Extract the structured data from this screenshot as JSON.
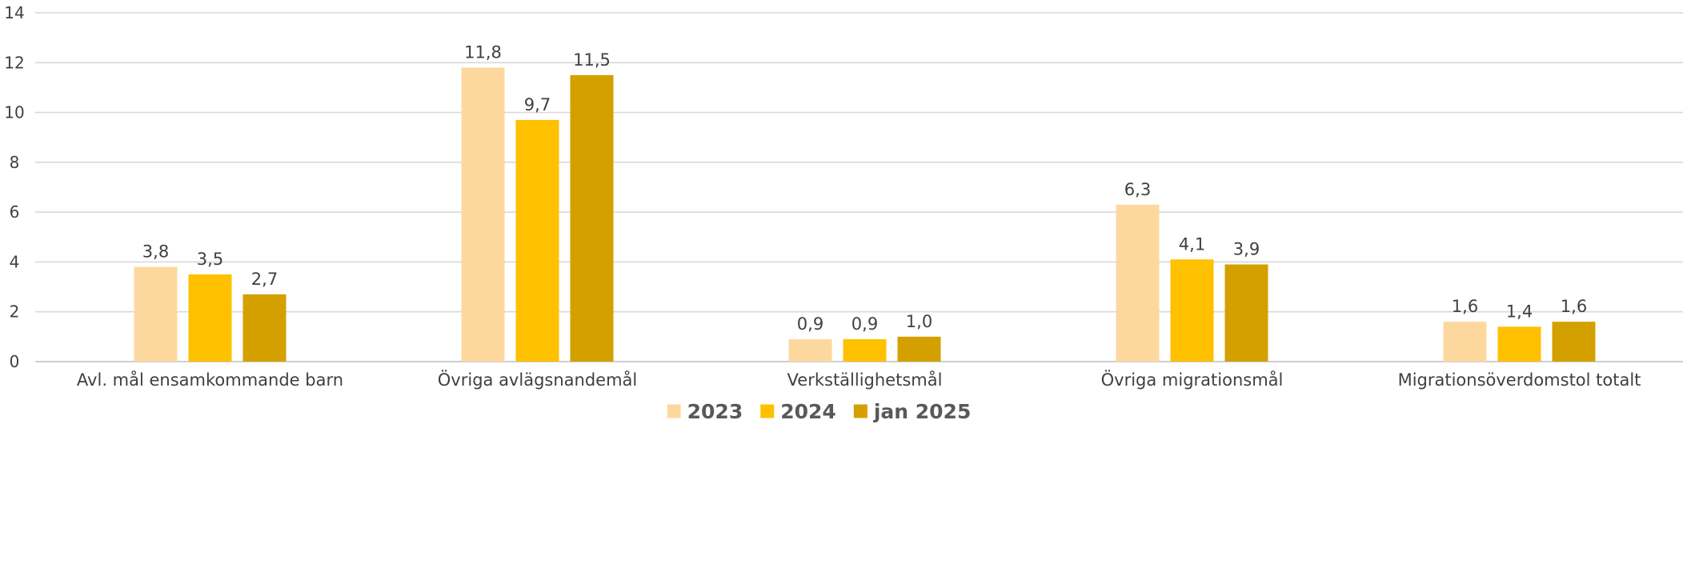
{
  "chart_data": {
    "type": "bar",
    "title": "",
    "xlabel": "",
    "ylabel": "",
    "ylim": [
      0,
      14
    ],
    "yticks": [
      0,
      2,
      4,
      6,
      8,
      10,
      12,
      14
    ],
    "grid": true,
    "legend_position": "bottom",
    "categories": [
      "Avl. mål ensamkommande barn",
      "Övriga avlägsnandemål",
      "Verkställighetsmål",
      "Övriga migrationsmål",
      "Migrationsöverdomstol totalt"
    ],
    "series": [
      {
        "name": "2023",
        "color": "#fdd89e",
        "values": [
          3.8,
          11.8,
          0.9,
          6.3,
          1.6
        ],
        "labels": [
          "3,8",
          "11,8",
          "0,9",
          "6,3",
          "1,6"
        ]
      },
      {
        "name": "2024",
        "color": "#ffc000",
        "values": [
          3.5,
          9.7,
          0.9,
          4.1,
          1.4
        ],
        "labels": [
          "3,5",
          "9,7",
          "0,9",
          "4,1",
          "1,4"
        ]
      },
      {
        "name": "jan 2025",
        "color": "#d4a000",
        "values": [
          2.7,
          11.5,
          1.0,
          3.9,
          1.6
        ],
        "labels": [
          "2,7",
          "11,5",
          "1,0",
          "3,9",
          "1,6"
        ]
      }
    ]
  }
}
